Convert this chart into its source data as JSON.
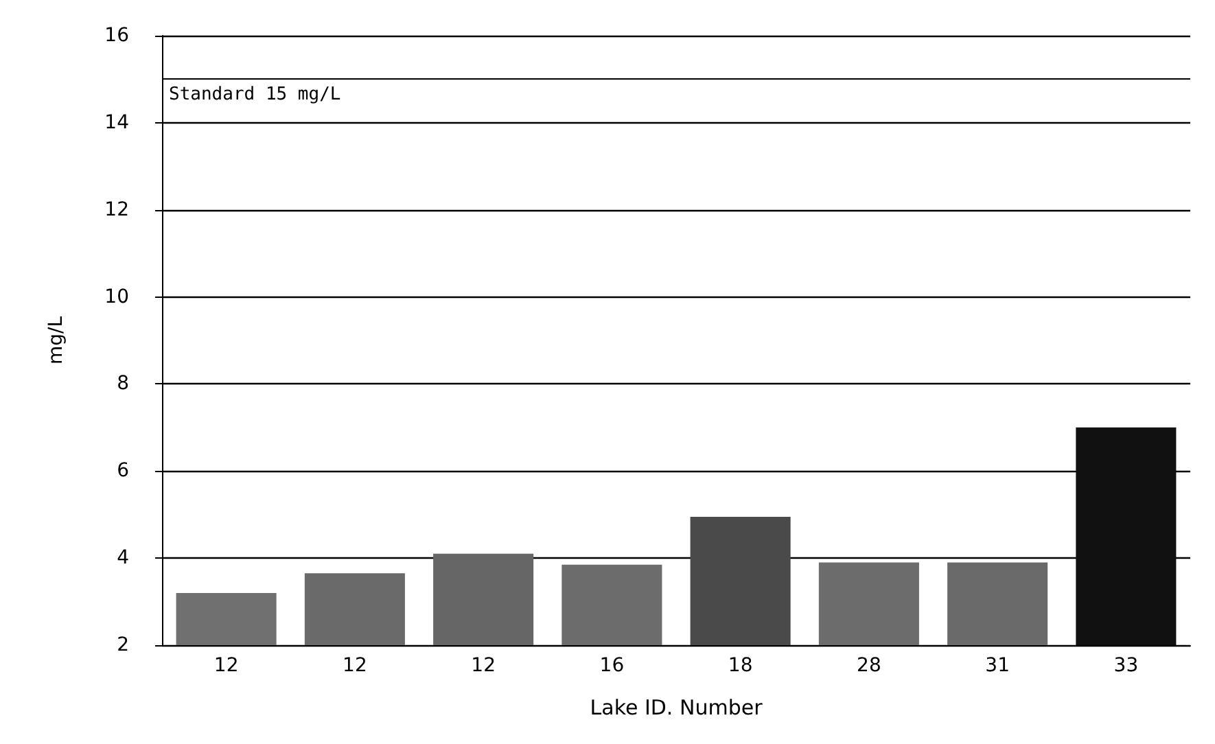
{
  "chart_data": {
    "type": "bar",
    "xlabel": "Lake ID. Number",
    "ylabel": "mg/L",
    "categories": [
      "12",
      "12",
      "12",
      "16",
      "18",
      "28",
      "31",
      "33"
    ],
    "values": [
      3.2,
      3.65,
      4.1,
      3.85,
      4.95,
      3.9,
      3.9,
      7.0
    ],
    "colors": [
      "#707070",
      "#6a6a6a",
      "#666666",
      "#6c6c6c",
      "#4a4a4a",
      "#6c6c6c",
      "#6a6a6a",
      "#111111"
    ],
    "ylim": [
      2,
      16
    ],
    "yticks": [
      2,
      4,
      6,
      8,
      10,
      12,
      14,
      16
    ],
    "grid": "y",
    "ref_lines": [
      {
        "axis": "y",
        "value": 15,
        "label": "Standard 15 mg/L",
        "color": "#000000"
      }
    ]
  }
}
